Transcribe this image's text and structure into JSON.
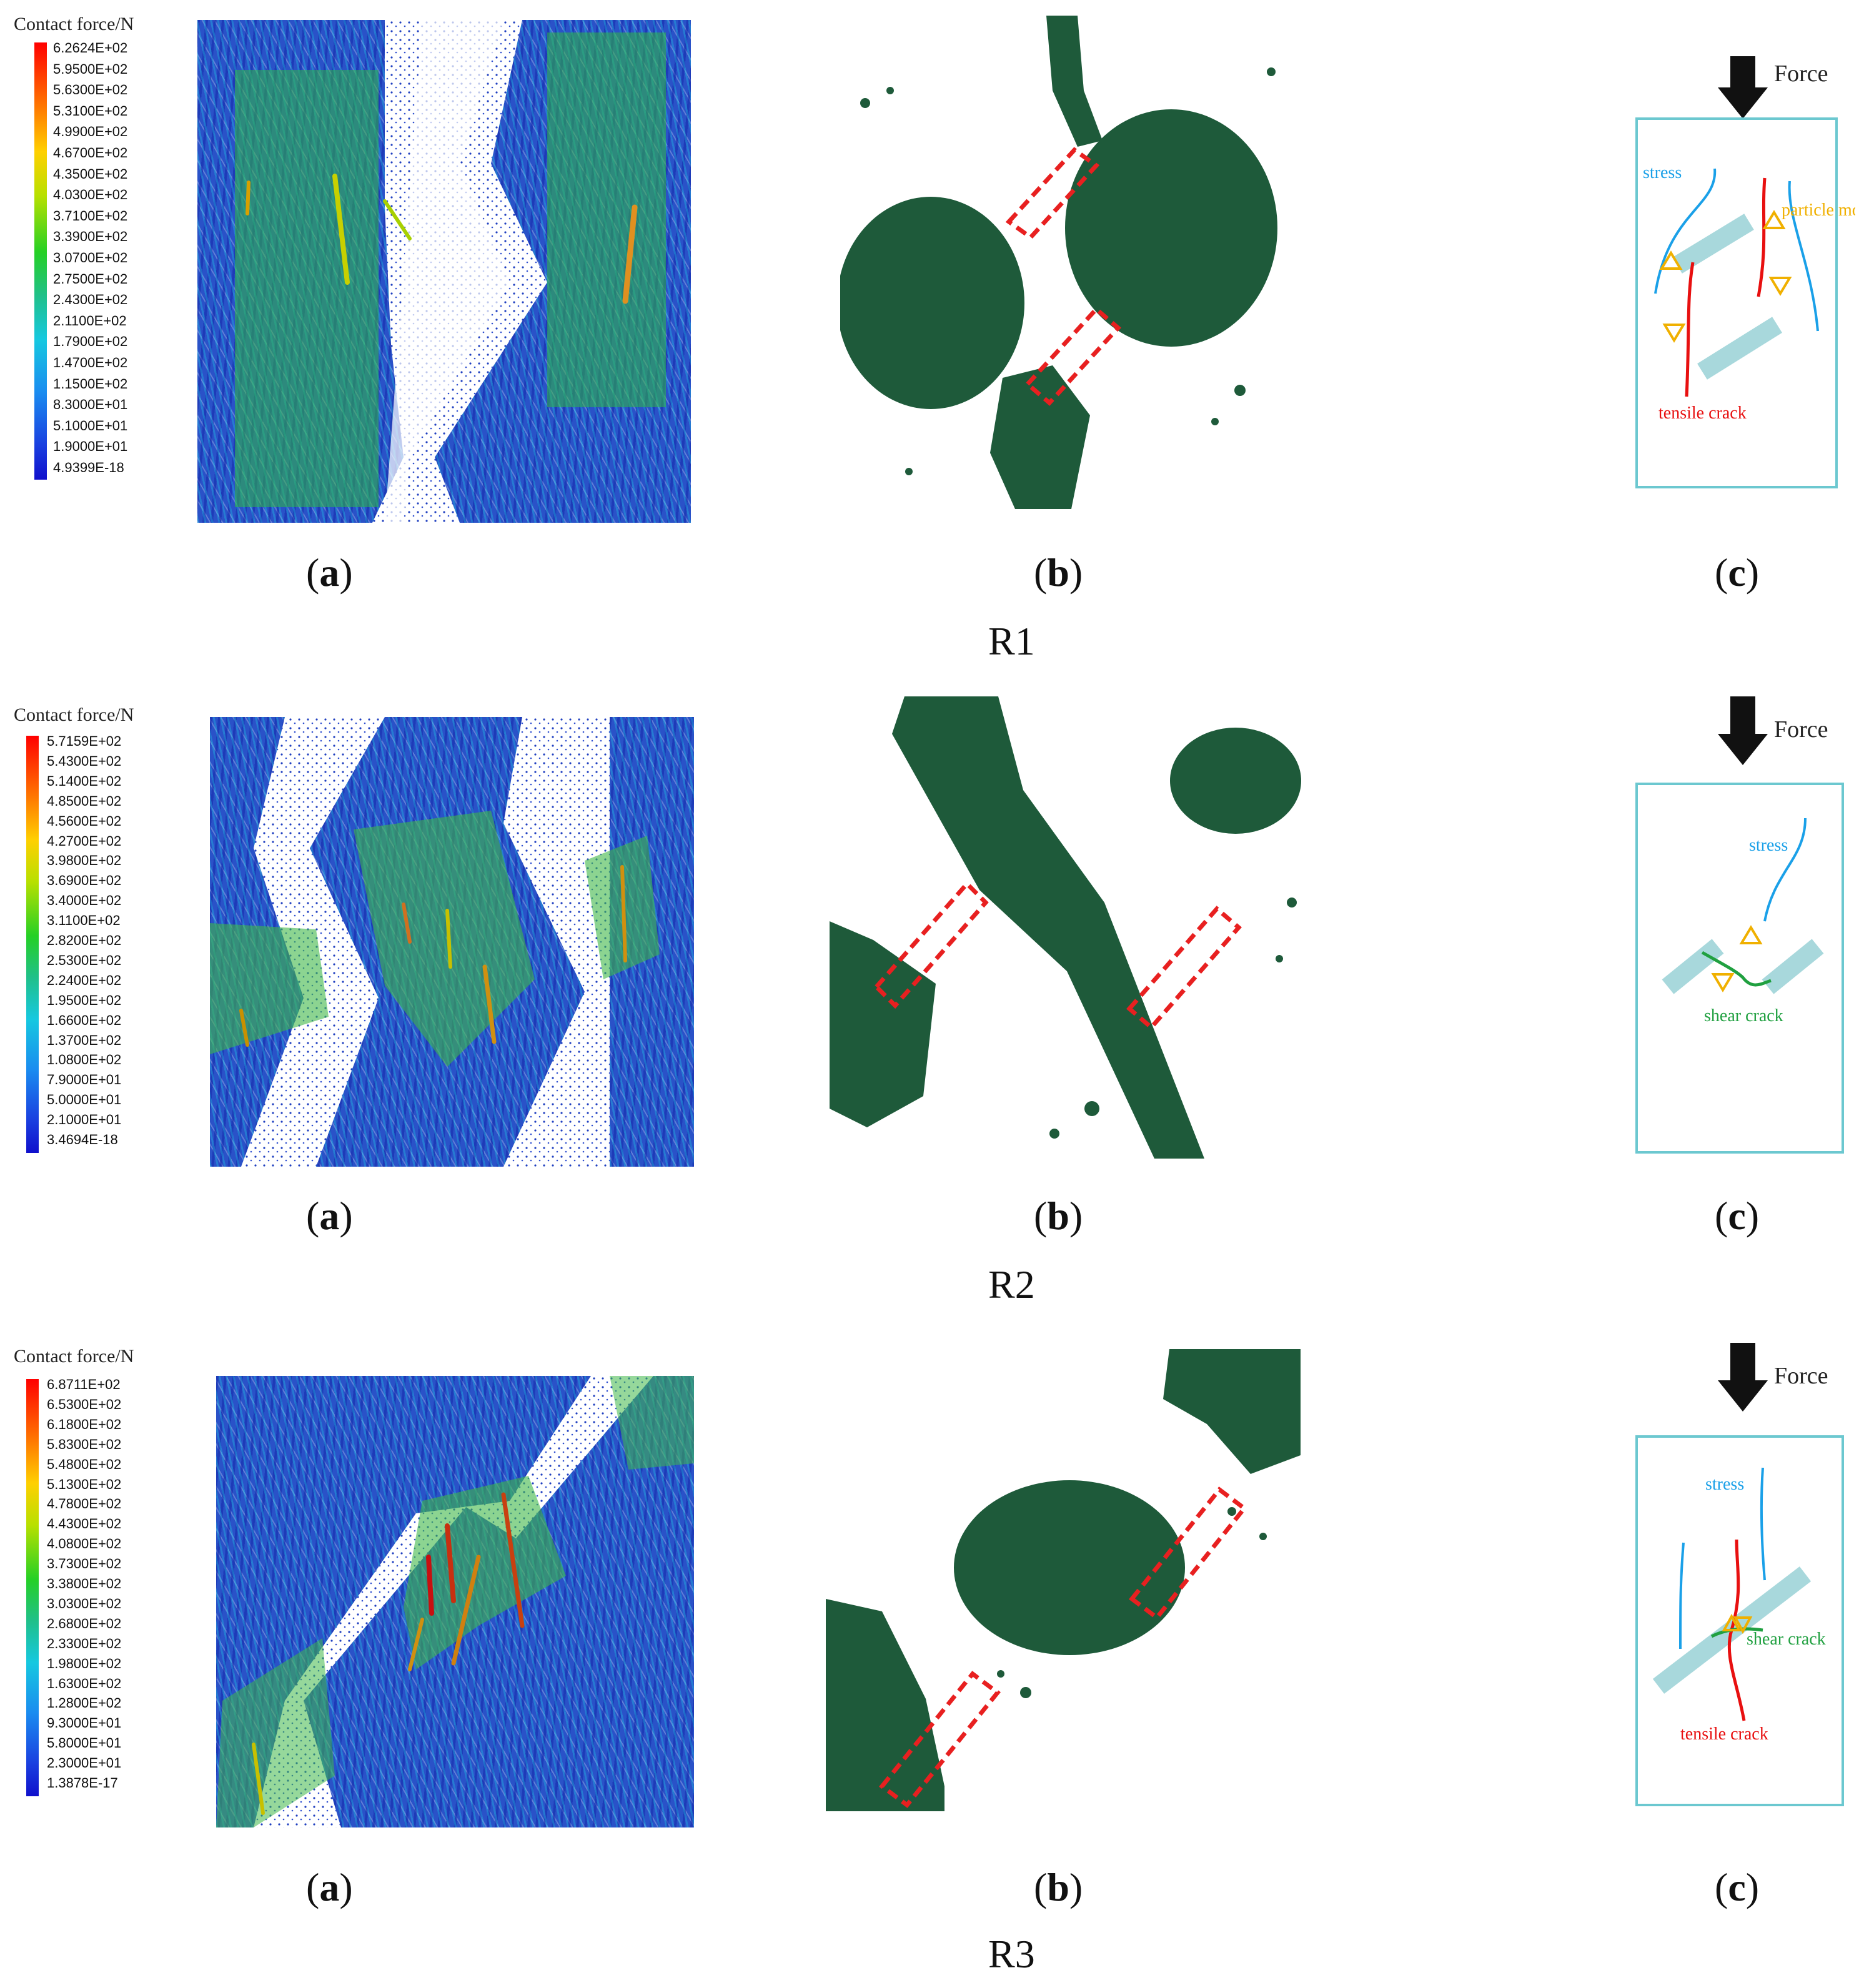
{
  "rows": [
    {
      "label": "R1",
      "legend": {
        "title": "Contact force/N",
        "values": [
          "6.2624E+02",
          "5.9500E+02",
          "5.6300E+02",
          "5.3100E+02",
          "4.9900E+02",
          "4.6700E+02",
          "4.3500E+02",
          "4.0300E+02",
          "3.7100E+02",
          "3.3900E+02",
          "3.0700E+02",
          "2.7500E+02",
          "2.4300E+02",
          "2.1100E+02",
          "1.7900E+02",
          "1.4700E+02",
          "1.1500E+02",
          "8.3000E+01",
          "5.1000E+01",
          "1.9000E+01",
          "4.9399E-18"
        ]
      },
      "captions": {
        "a": "a",
        "b": "b",
        "c": "c"
      },
      "schematic": {
        "force": "Force",
        "stress": "stress",
        "particle_movement": "particle movement",
        "crack": "tensile crack"
      }
    },
    {
      "label": "R2",
      "legend": {
        "title": "Contact force/N",
        "values": [
          "5.7159E+02",
          "5.4300E+02",
          "5.1400E+02",
          "4.8500E+02",
          "4.5600E+02",
          "4.2700E+02",
          "3.9800E+02",
          "3.6900E+02",
          "3.4000E+02",
          "3.1100E+02",
          "2.8200E+02",
          "2.5300E+02",
          "2.2400E+02",
          "1.9500E+02",
          "1.6600E+02",
          "1.3700E+02",
          "1.0800E+02",
          "7.9000E+01",
          "5.0000E+01",
          "2.1000E+01",
          "3.4694E-18"
        ]
      },
      "captions": {
        "a": "a",
        "b": "b",
        "c": "c"
      },
      "schematic": {
        "force": "Force",
        "stress": "stress",
        "crack": "shear crack"
      }
    },
    {
      "label": "R3",
      "legend": {
        "title": "Contact force/N",
        "values": [
          "6.8711E+02",
          "6.5300E+02",
          "6.1800E+02",
          "5.8300E+02",
          "5.4800E+02",
          "5.1300E+02",
          "4.7800E+02",
          "4.4300E+02",
          "4.0800E+02",
          "3.7300E+02",
          "3.3800E+02",
          "3.0300E+02",
          "2.6800E+02",
          "2.3300E+02",
          "1.9800E+02",
          "1.6300E+02",
          "1.2800E+02",
          "9.3000E+01",
          "5.8000E+01",
          "2.3000E+01",
          "1.3878E-17"
        ]
      },
      "captions": {
        "a": "a",
        "b": "b",
        "c": "c"
      },
      "schematic": {
        "force": "Force",
        "stress": "stress",
        "shear_crack": "shear crack",
        "tensile_crack": "tensile crack"
      }
    }
  ],
  "colors": {
    "stress": "#1aa0e8",
    "particle_movement": "#f0b000",
    "tensile_crack": "#e81010",
    "shear_crack": "#20a040",
    "specimen_border": "#6cc8d0",
    "joint": "#a8d8dc",
    "particles": "#1e5a3a",
    "highlight_box": "#e82020"
  }
}
